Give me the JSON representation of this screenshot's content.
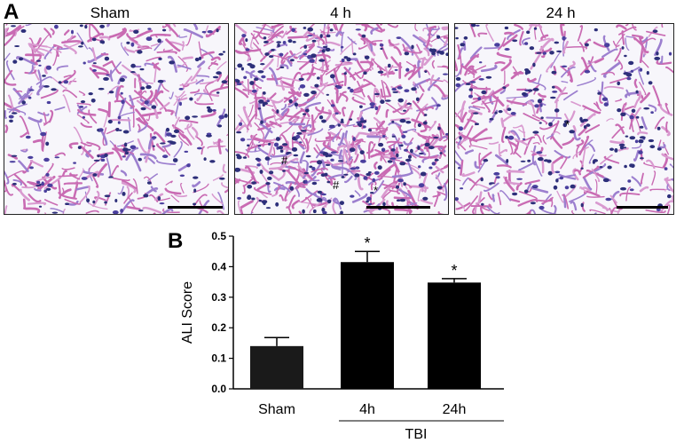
{
  "figure": {
    "panel_a_label": "A",
    "panel_b_label": "B",
    "images": [
      {
        "title": "Sham",
        "annotations": []
      },
      {
        "title": "4 h",
        "annotations": [
          "#",
          "#",
          "*"
        ]
      },
      {
        "title": "24 h",
        "annotations": [
          "*"
        ]
      }
    ]
  },
  "chart_data": {
    "type": "bar",
    "categories": [
      "Sham",
      "4h",
      "24h"
    ],
    "values": [
      0.14,
      0.415,
      0.348
    ],
    "errors": [
      0.028,
      0.035,
      0.013
    ],
    "significance": [
      "",
      "*",
      "*"
    ],
    "ylabel": "ALI Score",
    "xlabel": "",
    "group_label": "TBI",
    "group_members": [
      "4h",
      "24h"
    ],
    "ylim": [
      0.0,
      0.5
    ],
    "yticks": [
      "0.0",
      "0.1",
      "0.2",
      "0.3",
      "0.4",
      "0.5"
    ],
    "bar_colors": [
      "#1a1a1a",
      "#000000",
      "#000000"
    ],
    "grid": false
  }
}
